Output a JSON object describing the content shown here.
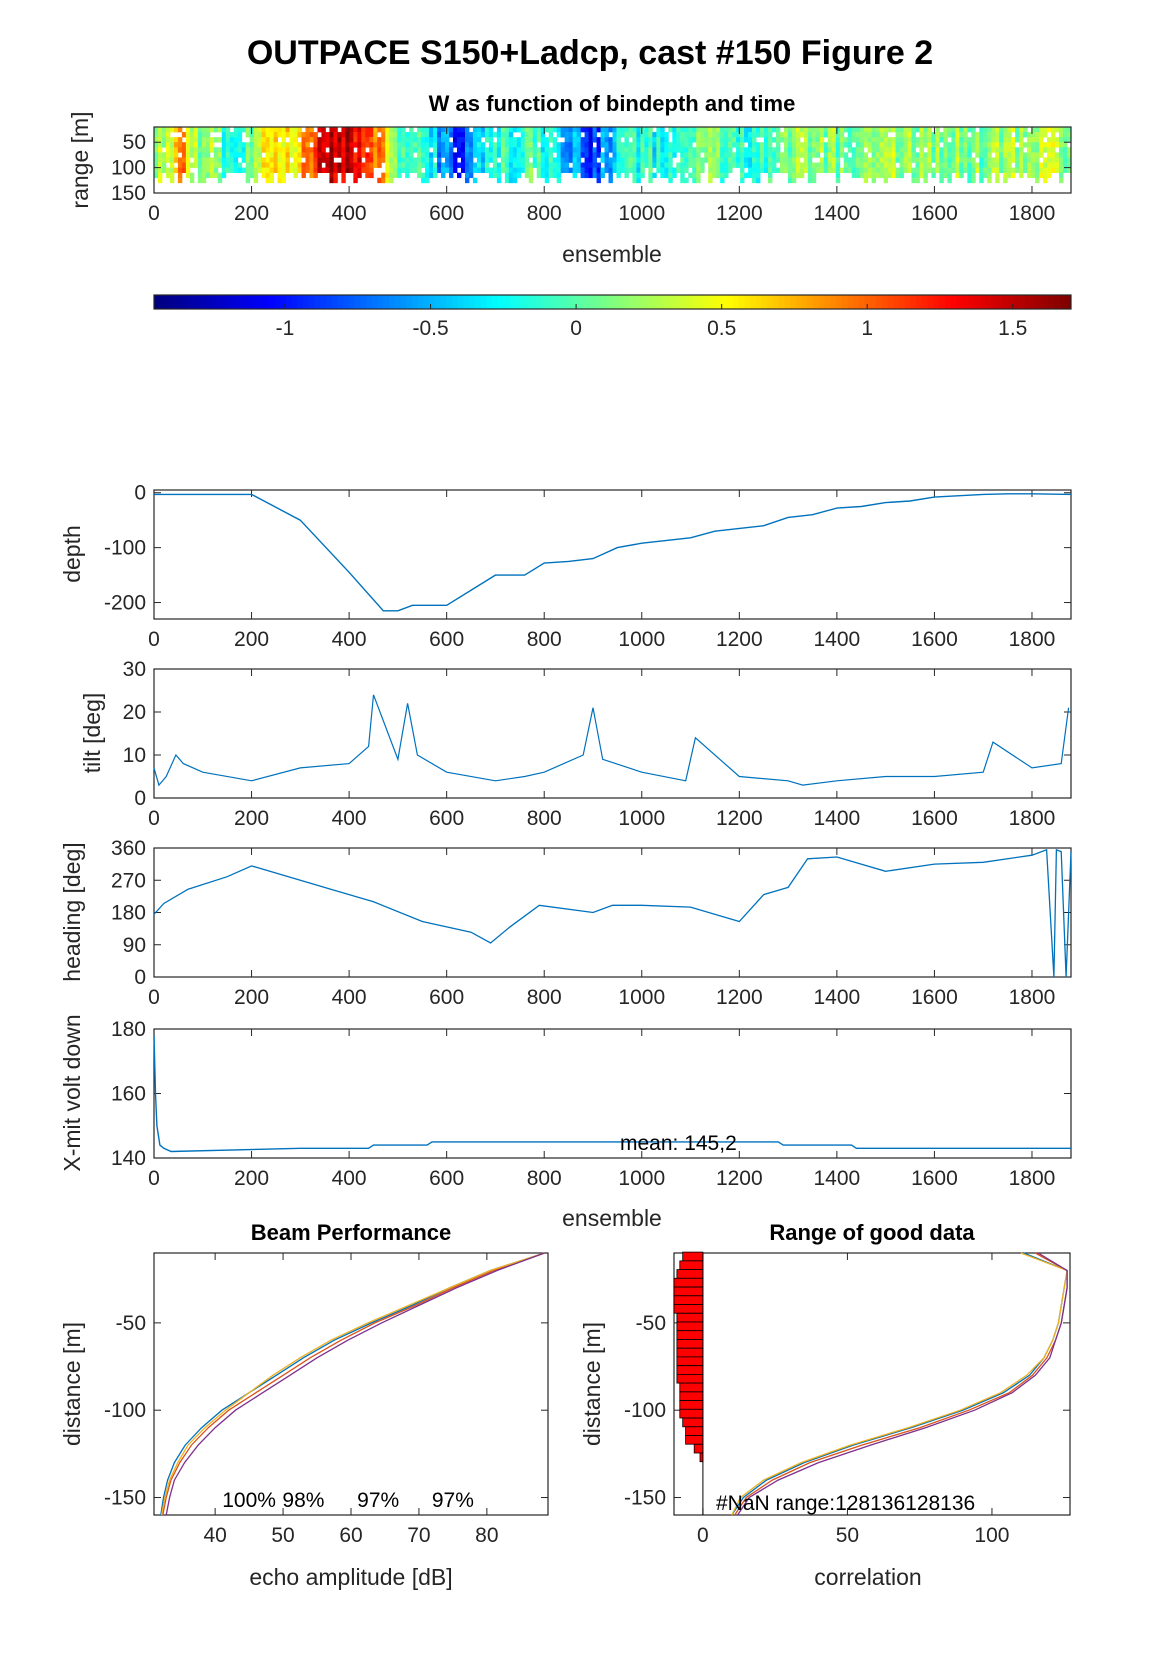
{
  "figure": {
    "title": "OUTPACE S150+Ladcp, cast #150 Figure 2"
  },
  "colors": {
    "series": "#0072bd",
    "beams": [
      "#0072bd",
      "#d95319",
      "#edb120",
      "#7e2f8e"
    ],
    "nan_bars": "#ff0000"
  },
  "chart_data": [
    {
      "id": "w",
      "type": "heatmap",
      "title": "W as function of bindepth and time",
      "xlabel": "ensemble",
      "ylabel": "range [m]",
      "xlim": [
        0,
        1880
      ],
      "ylim": [
        150,
        20
      ],
      "xticks": [
        0,
        200,
        400,
        600,
        800,
        1000,
        1200,
        1400,
        1600,
        1800
      ],
      "yticks": [
        50,
        100,
        150
      ],
      "colormap": "jet",
      "clim": [
        -1.45,
        1.7
      ],
      "colorbar_ticks": [
        -1,
        -0.5,
        0,
        0.5,
        1,
        1.5
      ],
      "w_profile": [
        [
          0,
          0.1
        ],
        [
          40,
          0.25
        ],
        [
          55,
          1.2
        ],
        [
          70,
          0.3
        ],
        [
          120,
          0.2
        ],
        [
          150,
          -0.2
        ],
        [
          200,
          0.1
        ],
        [
          240,
          0.6
        ],
        [
          260,
          0.4
        ],
        [
          300,
          0.7
        ],
        [
          330,
          1.2
        ],
        [
          360,
          1.4
        ],
        [
          400,
          1.5
        ],
        [
          440,
          1.3
        ],
        [
          470,
          0.8
        ],
        [
          500,
          0.1
        ],
        [
          530,
          -0.3
        ],
        [
          560,
          -0.1
        ],
        [
          590,
          -0.6
        ],
        [
          620,
          -1.0
        ],
        [
          650,
          -0.6
        ],
        [
          680,
          -0.2
        ],
        [
          720,
          -0.1
        ],
        [
          760,
          0.0
        ],
        [
          800,
          -0.2
        ],
        [
          850,
          -0.5
        ],
        [
          900,
          -0.9
        ],
        [
          950,
          -0.3
        ],
        [
          1000,
          -0.1
        ],
        [
          1050,
          -0.3
        ],
        [
          1100,
          0.0
        ],
        [
          1150,
          0.1
        ],
        [
          1200,
          -0.2
        ],
        [
          1250,
          0.0
        ],
        [
          1300,
          0.1
        ],
        [
          1350,
          0.2
        ],
        [
          1400,
          0.1
        ],
        [
          1450,
          0.2
        ],
        [
          1500,
          0.2
        ],
        [
          1550,
          0.3
        ],
        [
          1600,
          0.2
        ],
        [
          1650,
          0.2
        ],
        [
          1700,
          0.1
        ],
        [
          1750,
          0.2
        ],
        [
          1800,
          0.3
        ],
        [
          1880,
          0.2
        ]
      ]
    },
    {
      "id": "depth",
      "type": "line",
      "ylabel": "depth",
      "xlim": [
        0,
        1880
      ],
      "ylim": [
        -230,
        5
      ],
      "xticks": [
        0,
        200,
        400,
        600,
        800,
        1000,
        1200,
        1400,
        1600,
        1800
      ],
      "yticks": [
        0,
        -100,
        -200
      ],
      "x": [
        0,
        200,
        300,
        400,
        470,
        500,
        530,
        600,
        700,
        760,
        800,
        850,
        900,
        950,
        1000,
        1100,
        1150,
        1250,
        1300,
        1350,
        1400,
        1450,
        1500,
        1550,
        1600,
        1700,
        1750,
        1800,
        1880
      ],
      "y": [
        -3,
        -3,
        -50,
        -145,
        -215,
        -215,
        -205,
        -205,
        -150,
        -150,
        -128,
        -125,
        -120,
        -100,
        -92,
        -82,
        -70,
        -60,
        -45,
        -40,
        -28,
        -25,
        -18,
        -15,
        -8,
        -3,
        -2,
        -2,
        -3
      ]
    },
    {
      "id": "tilt",
      "type": "line",
      "ylabel": "tilt [deg]",
      "xlim": [
        0,
        1880
      ],
      "ylim": [
        0,
        30
      ],
      "xticks": [
        0,
        200,
        400,
        600,
        800,
        1000,
        1200,
        1400,
        1600,
        1800
      ],
      "yticks": [
        0,
        10,
        20,
        30
      ],
      "x": [
        0,
        10,
        25,
        45,
        60,
        100,
        200,
        300,
        400,
        440,
        450,
        500,
        520,
        540,
        600,
        700,
        760,
        800,
        880,
        900,
        920,
        1000,
        1090,
        1110,
        1200,
        1300,
        1330,
        1400,
        1500,
        1600,
        1700,
        1720,
        1800,
        1860,
        1875
      ],
      "y": [
        7,
        3,
        5,
        10,
        8,
        6,
        4,
        7,
        8,
        12,
        24,
        9,
        22,
        10,
        6,
        4,
        5,
        6,
        10,
        21,
        9,
        6,
        4,
        14,
        5,
        4,
        3,
        4,
        5,
        5,
        6,
        13,
        7,
        8,
        21
      ]
    },
    {
      "id": "heading",
      "type": "line",
      "ylabel": "heading [deg]",
      "xlim": [
        0,
        1880
      ],
      "ylim": [
        0,
        360
      ],
      "xticks": [
        0,
        200,
        400,
        600,
        800,
        1000,
        1200,
        1400,
        1600,
        1800
      ],
      "yticks": [
        0,
        90,
        180,
        270,
        360
      ],
      "x": [
        0,
        20,
        70,
        150,
        200,
        300,
        450,
        550,
        650,
        690,
        730,
        790,
        900,
        940,
        1000,
        1100,
        1200,
        1250,
        1300,
        1340,
        1400,
        1500,
        1600,
        1700,
        1800,
        1830,
        1845,
        1850,
        1860,
        1870,
        1880
      ],
      "y": [
        175,
        205,
        245,
        280,
        310,
        270,
        210,
        155,
        125,
        95,
        140,
        200,
        180,
        200,
        200,
        195,
        155,
        230,
        250,
        330,
        335,
        295,
        315,
        320,
        340,
        355,
        0,
        355,
        350,
        0,
        350
      ]
    },
    {
      "id": "volt",
      "type": "line",
      "ylabel": "X-mit volt down",
      "xlabel": "ensemble",
      "annotation": "mean: 145,2",
      "xlim": [
        0,
        1880
      ],
      "ylim": [
        140,
        180
      ],
      "xticks": [
        0,
        200,
        400,
        600,
        800,
        1000,
        1200,
        1400,
        1600,
        1800
      ],
      "yticks": [
        140,
        160,
        180
      ],
      "x": [
        0,
        3,
        6,
        12,
        20,
        35,
        300,
        440,
        450,
        560,
        570,
        1280,
        1290,
        1430,
        1440,
        1880
      ],
      "y": [
        178,
        160,
        150,
        144,
        143,
        142,
        143,
        143,
        144,
        144,
        145,
        145,
        144,
        144,
        143,
        143
      ]
    },
    {
      "id": "beam",
      "type": "line",
      "title": "Beam Performance",
      "xlabel": "echo amplitude [dB]",
      "ylabel": "distance [m]",
      "xlim": [
        31,
        89
      ],
      "ylim": [
        -160,
        -10
      ],
      "xticks": [
        40,
        50,
        60,
        70,
        80
      ],
      "yticks": [
        -50,
        -100,
        -150
      ],
      "percent_labels": [
        "100%",
        "98%",
        "97%",
        "97%"
      ],
      "series": [
        {
          "y": [
            -160,
            -150,
            -140,
            -130,
            -120,
            -110,
            -100,
            -90,
            -80,
            -70,
            -60,
            -50,
            -40,
            -30,
            -20,
            -10
          ],
          "x": [
            32.0,
            32.4,
            33.0,
            34.0,
            35.6,
            38.0,
            41.0,
            45.0,
            49.0,
            53.0,
            57.5,
            63.0,
            69.0,
            74.5,
            80.5,
            88.5
          ]
        },
        {
          "y": [
            -160,
            -150,
            -140,
            -130,
            -120,
            -110,
            -100,
            -90,
            -80,
            -70,
            -60,
            -50,
            -40,
            -30,
            -20,
            -10
          ],
          "x": [
            32.3,
            32.8,
            33.5,
            34.8,
            36.5,
            39.0,
            42.0,
            46.0,
            50.0,
            54.0,
            58.5,
            63.5,
            69.5,
            75.0,
            81.0,
            88.5
          ]
        },
        {
          "y": [
            -160,
            -150,
            -140,
            -130,
            -120,
            -110,
            -100,
            -90,
            -80,
            -70,
            -60,
            -50,
            -40,
            -30,
            -20,
            -10
          ],
          "x": [
            32.1,
            32.6,
            33.3,
            34.5,
            36.0,
            38.5,
            41.5,
            45.0,
            48.5,
            52.5,
            57.0,
            62.5,
            68.5,
            74.5,
            80.5,
            88.5
          ]
        },
        {
          "y": [
            -160,
            -150,
            -140,
            -130,
            -120,
            -110,
            -100,
            -90,
            -80,
            -70,
            -60,
            -50,
            -40,
            -30,
            -20,
            -10
          ],
          "x": [
            32.8,
            33.3,
            34.0,
            35.5,
            37.5,
            40.0,
            43.0,
            47.0,
            51.0,
            55.0,
            59.5,
            64.5,
            70.0,
            75.5,
            81.5,
            88.5
          ]
        }
      ]
    },
    {
      "id": "range",
      "type": "line",
      "title": "Range of good data",
      "xlabel": "correlation",
      "ylabel": "distance [m]",
      "annotation": "#NaN range:128136128136",
      "xlim": [
        -10,
        127
      ],
      "ylim": [
        -160,
        -10
      ],
      "xticks": [
        0,
        50,
        100
      ],
      "yticks": [
        -50,
        -100,
        -150
      ],
      "nan_bars": {
        "y": [
          -12,
          -17,
          -22,
          -27,
          -32,
          -37,
          -42,
          -47,
          -52,
          -57,
          -62,
          -67,
          -72,
          -77,
          -82,
          -87,
          -92,
          -97,
          -102,
          -107,
          -112,
          -117,
          -122,
          -127
        ],
        "count": [
          7,
          8,
          9,
          10,
          10,
          10,
          10,
          9,
          9,
          9,
          9,
          9,
          9,
          9,
          9,
          8,
          8,
          8,
          8,
          7,
          6,
          6,
          3,
          1
        ]
      },
      "series": [
        {
          "y": [
            -160,
            -150,
            -140,
            -130,
            -120,
            -110,
            -100,
            -90,
            -80,
            -70,
            -60,
            -50,
            -40,
            -30,
            -20,
            -10
          ],
          "x": [
            10,
            14,
            22,
            35,
            52,
            72,
            90,
            104,
            113,
            118,
            121,
            123,
            124,
            125,
            126,
            111
          ]
        },
        {
          "y": [
            -160,
            -150,
            -140,
            -130,
            -120,
            -110,
            -100,
            -90,
            -80,
            -70,
            -60,
            -50,
            -40,
            -30,
            -20,
            -10
          ],
          "x": [
            11,
            15,
            24,
            37,
            55,
            75,
            92,
            106,
            114,
            119,
            122,
            124,
            125,
            126,
            126,
            115
          ]
        },
        {
          "y": [
            -160,
            -150,
            -140,
            -130,
            -120,
            -110,
            -100,
            -90,
            -80,
            -70,
            -60,
            -50,
            -40,
            -30,
            -20,
            -10
          ],
          "x": [
            10,
            13,
            21,
            34,
            51,
            71,
            89,
            103,
            112,
            118,
            121,
            123,
            124,
            125,
            126,
            110
          ]
        },
        {
          "y": [
            -160,
            -150,
            -140,
            -130,
            -120,
            -110,
            -100,
            -90,
            -80,
            -70,
            -60,
            -50,
            -40,
            -30,
            -20,
            -10
          ],
          "x": [
            12,
            16,
            26,
            40,
            58,
            77,
            94,
            107,
            115,
            120,
            122,
            124,
            125,
            126,
            126,
            116
          ]
        }
      ]
    }
  ]
}
